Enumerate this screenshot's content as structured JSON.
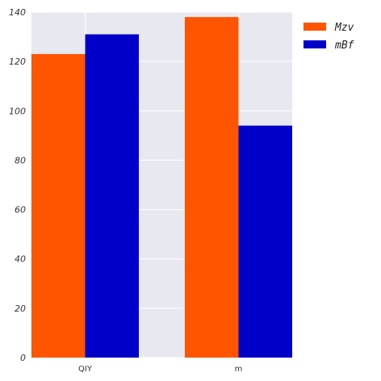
{
  "chart_data": {
    "type": "bar",
    "categories": [
      "QIY",
      "m"
    ],
    "series": [
      {
        "name": "Mzv",
        "values": [
          123,
          138
        ],
        "color": "#ff5500"
      },
      {
        "name": "mBf",
        "values": [
          131,
          94
        ],
        "color": "#0000c8"
      }
    ],
    "title": "",
    "xlabel": "",
    "ylabel": "",
    "ylim": [
      0,
      140
    ],
    "yticks": [
      0,
      20,
      40,
      60,
      80,
      100,
      120,
      140
    ],
    "grid": true,
    "legend_position": "top-right-outside",
    "background_color": "#e8e8f0",
    "grid_color": "#ffffff"
  }
}
